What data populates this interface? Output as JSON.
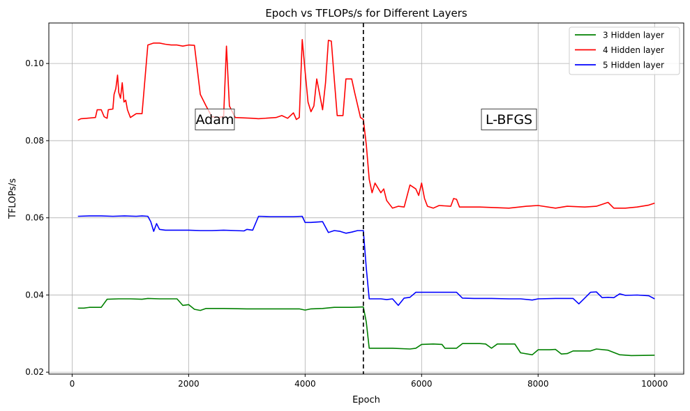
{
  "chart_data": {
    "type": "line",
    "title": "Epoch vs TFLOPs/s for Different Layers",
    "xlabel": "Epoch",
    "ylabel": "TFLOPs/s",
    "xlim": [
      -400,
      10500
    ],
    "ylim": [
      0.0195,
      0.1105
    ],
    "xticks": [
      0,
      2000,
      4000,
      6000,
      8000,
      10000
    ],
    "xtick_labels": [
      "0",
      "2000",
      "4000",
      "6000",
      "8000",
      "10000"
    ],
    "yticks": [
      0.02,
      0.04,
      0.06,
      0.08,
      0.1
    ],
    "ytick_labels": [
      "0.02",
      "0.04",
      "0.06",
      "0.08",
      "0.10"
    ],
    "grid": true,
    "legend_position": "top-right",
    "vline": {
      "x": 5000,
      "style": "dashed",
      "color": "#000000"
    },
    "annotations": [
      {
        "text": "Adam",
        "x": 2450,
        "y": 0.0855
      },
      {
        "text": "L-BFGS",
        "x": 7500,
        "y": 0.0855
      }
    ],
    "series": [
      {
        "name": "3 Hidden layer",
        "color": "#008000",
        "points": [
          [
            100,
            0.0366
          ],
          [
            200,
            0.0366
          ],
          [
            300,
            0.0368
          ],
          [
            500,
            0.0368
          ],
          [
            600,
            0.0389
          ],
          [
            800,
            0.039
          ],
          [
            1000,
            0.039
          ],
          [
            1200,
            0.0389
          ],
          [
            1300,
            0.0391
          ],
          [
            1500,
            0.039
          ],
          [
            1800,
            0.039
          ],
          [
            1900,
            0.0373
          ],
          [
            2000,
            0.0375
          ],
          [
            2100,
            0.0363
          ],
          [
            2200,
            0.036
          ],
          [
            2300,
            0.0365
          ],
          [
            2600,
            0.0365
          ],
          [
            3000,
            0.0364
          ],
          [
            3500,
            0.0364
          ],
          [
            3900,
            0.0364
          ],
          [
            4000,
            0.0361
          ],
          [
            4100,
            0.0364
          ],
          [
            4300,
            0.0365
          ],
          [
            4500,
            0.0368
          ],
          [
            4800,
            0.0368
          ],
          [
            5000,
            0.0369
          ],
          [
            5050,
            0.033
          ],
          [
            5100,
            0.0262
          ],
          [
            5500,
            0.0262
          ],
          [
            5800,
            0.026
          ],
          [
            5900,
            0.0262
          ],
          [
            6000,
            0.0272
          ],
          [
            6200,
            0.0273
          ],
          [
            6350,
            0.0272
          ],
          [
            6400,
            0.0262
          ],
          [
            6600,
            0.0262
          ],
          [
            6700,
            0.0274
          ],
          [
            7000,
            0.0274
          ],
          [
            7100,
            0.0273
          ],
          [
            7200,
            0.0262
          ],
          [
            7300,
            0.0273
          ],
          [
            7600,
            0.0273
          ],
          [
            7700,
            0.025
          ],
          [
            7900,
            0.0245
          ],
          [
            8000,
            0.0258
          ],
          [
            8200,
            0.0258
          ],
          [
            8300,
            0.0259
          ],
          [
            8400,
            0.0247
          ],
          [
            8500,
            0.0248
          ],
          [
            8600,
            0.0255
          ],
          [
            8900,
            0.0255
          ],
          [
            9000,
            0.026
          ],
          [
            9200,
            0.0257
          ],
          [
            9400,
            0.0245
          ],
          [
            9600,
            0.0243
          ],
          [
            10000,
            0.0244
          ]
        ]
      },
      {
        "name": "4 Hidden layer",
        "color": "#ff0000",
        "points": [
          [
            100,
            0.0853
          ],
          [
            150,
            0.0857
          ],
          [
            250,
            0.0858
          ],
          [
            400,
            0.086
          ],
          [
            430,
            0.088
          ],
          [
            500,
            0.088
          ],
          [
            550,
            0.0862
          ],
          [
            600,
            0.0858
          ],
          [
            620,
            0.088
          ],
          [
            700,
            0.0882
          ],
          [
            720,
            0.092
          ],
          [
            750,
            0.0935
          ],
          [
            780,
            0.097
          ],
          [
            800,
            0.0925
          ],
          [
            830,
            0.091
          ],
          [
            860,
            0.095
          ],
          [
            890,
            0.09
          ],
          [
            920,
            0.0905
          ],
          [
            950,
            0.088
          ],
          [
            1000,
            0.086
          ],
          [
            1100,
            0.087
          ],
          [
            1200,
            0.087
          ],
          [
            1300,
            0.1048
          ],
          [
            1400,
            0.1053
          ],
          [
            1500,
            0.1053
          ],
          [
            1600,
            0.105
          ],
          [
            1700,
            0.1048
          ],
          [
            1800,
            0.1048
          ],
          [
            1900,
            0.1045
          ],
          [
            2000,
            0.1048
          ],
          [
            2100,
            0.1047
          ],
          [
            2200,
            0.092
          ],
          [
            2300,
            0.089
          ],
          [
            2400,
            0.0862
          ],
          [
            2500,
            0.086
          ],
          [
            2600,
            0.0862
          ],
          [
            2650,
            0.1045
          ],
          [
            2700,
            0.089
          ],
          [
            2800,
            0.086
          ],
          [
            3100,
            0.0858
          ],
          [
            3200,
            0.0857
          ],
          [
            3500,
            0.086
          ],
          [
            3600,
            0.0865
          ],
          [
            3700,
            0.0858
          ],
          [
            3800,
            0.0872
          ],
          [
            3850,
            0.0855
          ],
          [
            3900,
            0.086
          ],
          [
            3950,
            0.1062
          ],
          [
            4000,
            0.098
          ],
          [
            4050,
            0.09
          ],
          [
            4100,
            0.0875
          ],
          [
            4150,
            0.089
          ],
          [
            4200,
            0.096
          ],
          [
            4300,
            0.088
          ],
          [
            4350,
            0.095
          ],
          [
            4400,
            0.106
          ],
          [
            4450,
            0.1058
          ],
          [
            4500,
            0.096
          ],
          [
            4550,
            0.0865
          ],
          [
            4650,
            0.0865
          ],
          [
            4700,
            0.096
          ],
          [
            4800,
            0.096
          ],
          [
            4850,
            0.0925
          ],
          [
            4950,
            0.086
          ],
          [
            5000,
            0.0855
          ],
          [
            5050,
            0.079
          ],
          [
            5100,
            0.07
          ],
          [
            5150,
            0.0665
          ],
          [
            5200,
            0.069
          ],
          [
            5300,
            0.0665
          ],
          [
            5350,
            0.0675
          ],
          [
            5400,
            0.0645
          ],
          [
            5500,
            0.0625
          ],
          [
            5600,
            0.063
          ],
          [
            5700,
            0.0628
          ],
          [
            5800,
            0.0685
          ],
          [
            5900,
            0.0675
          ],
          [
            5950,
            0.0658
          ],
          [
            6000,
            0.069
          ],
          [
            6050,
            0.065
          ],
          [
            6100,
            0.063
          ],
          [
            6200,
            0.0625
          ],
          [
            6300,
            0.0632
          ],
          [
            6500,
            0.063
          ],
          [
            6550,
            0.065
          ],
          [
            6600,
            0.0648
          ],
          [
            6650,
            0.0628
          ],
          [
            7000,
            0.0628
          ],
          [
            7500,
            0.0625
          ],
          [
            7800,
            0.063
          ],
          [
            8000,
            0.0632
          ],
          [
            8300,
            0.0625
          ],
          [
            8500,
            0.063
          ],
          [
            8800,
            0.0628
          ],
          [
            9000,
            0.063
          ],
          [
            9200,
            0.064
          ],
          [
            9300,
            0.0625
          ],
          [
            9500,
            0.0625
          ],
          [
            9700,
            0.0628
          ],
          [
            9900,
            0.0633
          ],
          [
            10000,
            0.0638
          ]
        ]
      },
      {
        "name": "5 Hidden layer",
        "color": "#0000ff",
        "points": [
          [
            100,
            0.0604
          ],
          [
            300,
            0.0605
          ],
          [
            500,
            0.0605
          ],
          [
            700,
            0.0604
          ],
          [
            900,
            0.0605
          ],
          [
            1100,
            0.0604
          ],
          [
            1200,
            0.0605
          ],
          [
            1300,
            0.0604
          ],
          [
            1350,
            0.059
          ],
          [
            1400,
            0.0565
          ],
          [
            1450,
            0.0585
          ],
          [
            1500,
            0.057
          ],
          [
            1600,
            0.0568
          ],
          [
            1800,
            0.0568
          ],
          [
            2000,
            0.0568
          ],
          [
            2200,
            0.0567
          ],
          [
            2400,
            0.0567
          ],
          [
            2600,
            0.0568
          ],
          [
            2800,
            0.0567
          ],
          [
            2950,
            0.0566
          ],
          [
            3000,
            0.057
          ],
          [
            3100,
            0.0568
          ],
          [
            3200,
            0.0604
          ],
          [
            3400,
            0.0603
          ],
          [
            3600,
            0.0603
          ],
          [
            3800,
            0.0603
          ],
          [
            3950,
            0.0604
          ],
          [
            4000,
            0.0588
          ],
          [
            4100,
            0.0588
          ],
          [
            4300,
            0.059
          ],
          [
            4400,
            0.0562
          ],
          [
            4500,
            0.0567
          ],
          [
            4600,
            0.0565
          ],
          [
            4700,
            0.056
          ],
          [
            4800,
            0.0563
          ],
          [
            4900,
            0.0567
          ],
          [
            5000,
            0.0567
          ],
          [
            5050,
            0.047
          ],
          [
            5100,
            0.039
          ],
          [
            5300,
            0.039
          ],
          [
            5400,
            0.0388
          ],
          [
            5500,
            0.039
          ],
          [
            5600,
            0.0373
          ],
          [
            5700,
            0.0392
          ],
          [
            5800,
            0.0394
          ],
          [
            5900,
            0.0407
          ],
          [
            6000,
            0.0407
          ],
          [
            6300,
            0.0407
          ],
          [
            6600,
            0.0407
          ],
          [
            6700,
            0.0392
          ],
          [
            6900,
            0.0391
          ],
          [
            7200,
            0.0391
          ],
          [
            7500,
            0.039
          ],
          [
            7700,
            0.039
          ],
          [
            7900,
            0.0387
          ],
          [
            8000,
            0.039
          ],
          [
            8300,
            0.0391
          ],
          [
            8600,
            0.0391
          ],
          [
            8700,
            0.0377
          ],
          [
            8800,
            0.0392
          ],
          [
            8900,
            0.0407
          ],
          [
            9000,
            0.0408
          ],
          [
            9100,
            0.0393
          ],
          [
            9200,
            0.0394
          ],
          [
            9300,
            0.0393
          ],
          [
            9400,
            0.0403
          ],
          [
            9500,
            0.0399
          ],
          [
            9700,
            0.04
          ],
          [
            9900,
            0.0398
          ],
          [
            10000,
            0.039
          ]
        ]
      }
    ]
  }
}
